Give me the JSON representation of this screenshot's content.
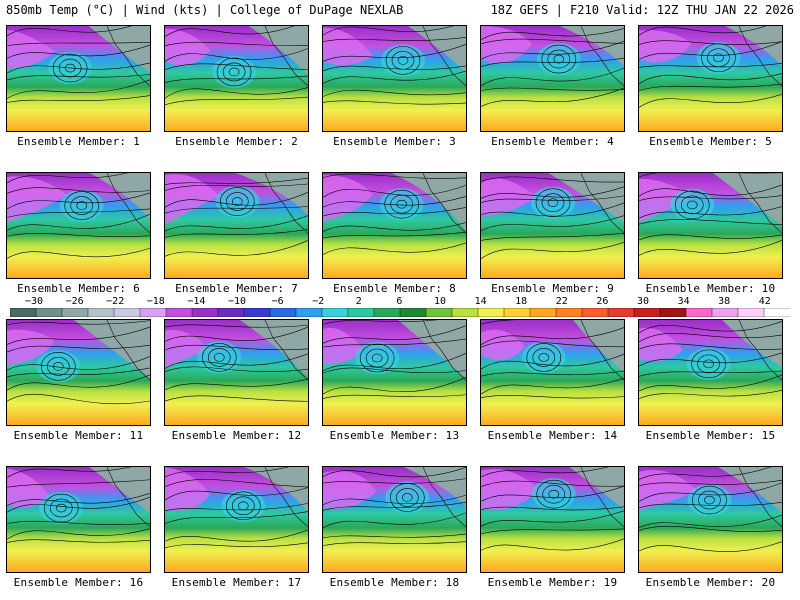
{
  "header": {
    "title": "850mb Temp (°C) | Wind (kts) | College of DuPage NEXLAB",
    "run_info": "18Z GEFS | F210 Valid: 12Z THU JAN 22 2026"
  },
  "members": [
    {
      "label": "Ensemble Member: 1"
    },
    {
      "label": "Ensemble Member: 2"
    },
    {
      "label": "Ensemble Member: 3"
    },
    {
      "label": "Ensemble Member: 4"
    },
    {
      "label": "Ensemble Member: 5"
    },
    {
      "label": "Ensemble Member: 6"
    },
    {
      "label": "Ensemble Member: 7"
    },
    {
      "label": "Ensemble Member: 8"
    },
    {
      "label": "Ensemble Member: 9"
    },
    {
      "label": "Ensemble Member: 10"
    },
    {
      "label": "Ensemble Member: 11"
    },
    {
      "label": "Ensemble Member: 12"
    },
    {
      "label": "Ensemble Member: 13"
    },
    {
      "label": "Ensemble Member: 14"
    },
    {
      "label": "Ensemble Member: 15"
    },
    {
      "label": "Ensemble Member: 16"
    },
    {
      "label": "Ensemble Member: 17"
    },
    {
      "label": "Ensemble Member: 18"
    },
    {
      "label": "Ensemble Member: 19"
    },
    {
      "label": "Ensemble Member: 20"
    }
  ],
  "colorbar": {
    "ticks": [
      "−30",
      "−26",
      "−22",
      "−18",
      "−14",
      "−10",
      "−6",
      "−2",
      "2",
      "6",
      "10",
      "14",
      "18",
      "22",
      "26",
      "30",
      "34",
      "38",
      "42"
    ],
    "colors": [
      "#4a6a66",
      "#6f8f8a",
      "#8fa7a5",
      "#b5c3c6",
      "#c9c9e6",
      "#d9a0f0",
      "#c34fe0",
      "#9a2fc8",
      "#6a2cc0",
      "#3a3ad0",
      "#2a6ae6",
      "#2fa0f0",
      "#36d0e0",
      "#2ec8a0",
      "#2aa85a",
      "#1e8a30",
      "#6cc43a",
      "#b8e040",
      "#f0f050",
      "#ffd030",
      "#ffa820",
      "#ff8020",
      "#ff5a30",
      "#e83a30",
      "#c81e1e",
      "#a01414",
      "#ff66cc",
      "#f0a0f0",
      "#ffd0ff",
      "#ffffff"
    ]
  }
}
